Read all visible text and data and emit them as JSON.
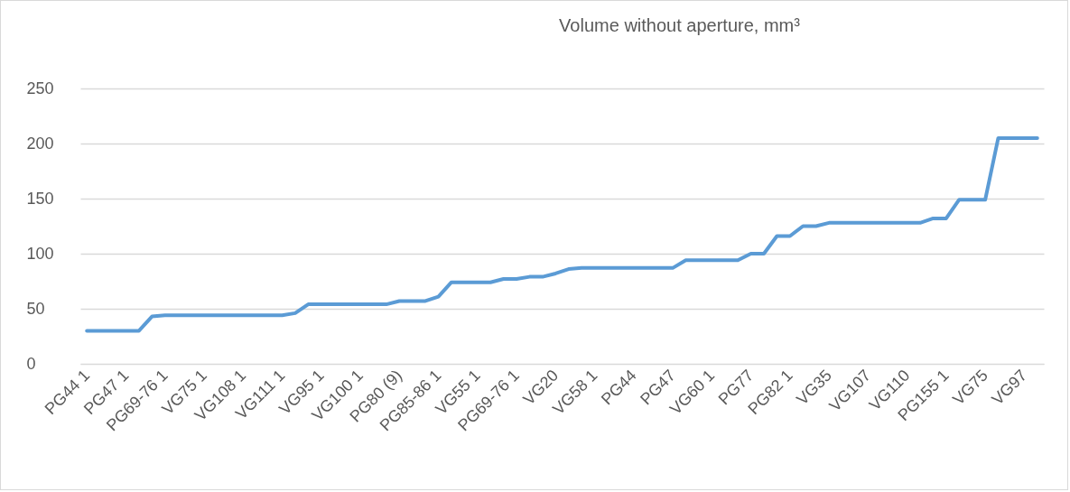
{
  "chart_data": {
    "type": "line",
    "title": "Volume without aperture, mm³",
    "categories": [
      "PG44 1",
      null,
      null,
      "PG47 1",
      null,
      null,
      "PG69-76 1",
      null,
      null,
      "VG75 1",
      null,
      null,
      "VG108 1",
      null,
      null,
      "VG111 1",
      null,
      null,
      "VG95 1",
      null,
      null,
      "VG100 1",
      null,
      null,
      "PG80 (9)",
      null,
      null,
      "PG85-86 1",
      null,
      null,
      "VG55 1",
      null,
      null,
      "PG69-76 1",
      null,
      null,
      "VG20",
      null,
      null,
      "VG58 1",
      null,
      null,
      "PG44",
      null,
      null,
      "PG47",
      null,
      null,
      "VG60 1",
      null,
      null,
      "PG77",
      null,
      null,
      "PG82 1",
      null,
      null,
      "VG35",
      null,
      null,
      "VG107",
      null,
      null,
      "VG110",
      null,
      null,
      "PG155 1",
      null,
      null,
      "VG75",
      null,
      null,
      "VG97",
      null
    ],
    "values": [
      30,
      30,
      30,
      30,
      30,
      43,
      44,
      44,
      44,
      44,
      44,
      44,
      44,
      44,
      44,
      44,
      46,
      54,
      54,
      54,
      54,
      54,
      54,
      54,
      57,
      57,
      57,
      61,
      74,
      74,
      74,
      74,
      77,
      77,
      79,
      79,
      82,
      86,
      87,
      87,
      87,
      87,
      87,
      87,
      87,
      87,
      94,
      94,
      94,
      94,
      94,
      100,
      100,
      116,
      116,
      125,
      125,
      128,
      128,
      128,
      128,
      128,
      128,
      128,
      128,
      132,
      132,
      149,
      149,
      149,
      205,
      205,
      205,
      205
    ],
    "color": "#5b9bd5",
    "ylim": [
      0,
      250
    ],
    "yticks": [
      0,
      50,
      100,
      150,
      200,
      250
    ],
    "grid": "y"
  }
}
